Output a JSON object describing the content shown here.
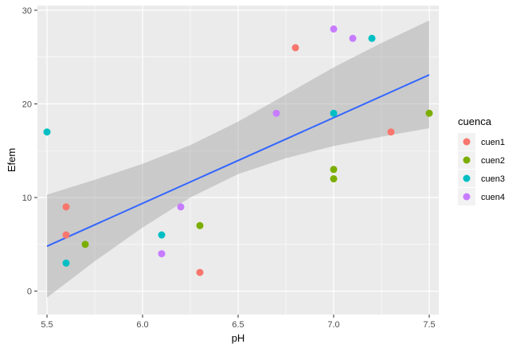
{
  "chart_data": {
    "type": "scatter",
    "xlabel": "pH",
    "ylabel": "Efem",
    "xlim": [
      5.45,
      7.55
    ],
    "ylim": [
      -2.5,
      30.5
    ],
    "x_ticks": [
      5.5,
      6.0,
      6.5,
      7.0,
      7.5
    ],
    "x_tick_labels": [
      "5.5",
      "6.0",
      "6.5",
      "7.0",
      "7.5"
    ],
    "y_ticks": [
      0,
      10,
      20,
      30
    ],
    "y_tick_labels": [
      "0",
      "10",
      "20",
      "30"
    ],
    "grid": true,
    "legend": {
      "title": "cuenca",
      "placement": "right"
    },
    "series": [
      {
        "name": "cuen1",
        "color": "#F8766D",
        "points": [
          [
            5.6,
            9
          ],
          [
            5.6,
            6
          ],
          [
            6.3,
            2
          ],
          [
            6.8,
            26
          ],
          [
            7.3,
            17
          ]
        ]
      },
      {
        "name": "cuen2",
        "color": "#7CAE00",
        "points": [
          [
            5.7,
            5
          ],
          [
            6.3,
            7
          ],
          [
            7.0,
            13
          ],
          [
            7.0,
            12
          ],
          [
            7.5,
            19
          ]
        ]
      },
      {
        "name": "cuen3",
        "color": "#00BFC4",
        "points": [
          [
            5.5,
            17
          ],
          [
            5.6,
            3
          ],
          [
            6.1,
            6
          ],
          [
            7.0,
            19
          ],
          [
            7.2,
            27
          ]
        ]
      },
      {
        "name": "cuen4",
        "color": "#C77CFF",
        "points": [
          [
            6.1,
            4
          ],
          [
            6.2,
            9
          ],
          [
            6.7,
            19
          ],
          [
            7.0,
            28
          ],
          [
            7.1,
            27
          ]
        ]
      }
    ],
    "trend_line": {
      "color": "#3366FF",
      "x": [
        5.5,
        7.5
      ],
      "y": [
        4.8,
        23.1
      ]
    },
    "confidence_band": {
      "color": "#999999",
      "x": [
        5.5,
        5.75,
        6.0,
        6.25,
        6.5,
        6.75,
        7.0,
        7.25,
        7.5
      ],
      "lower": [
        -0.7,
        3.2,
        6.8,
        10.0,
        12.5,
        14.2,
        15.5,
        16.5,
        17.4
      ],
      "upper": [
        10.3,
        11.9,
        13.6,
        15.6,
        18.1,
        21.0,
        23.9,
        26.5,
        28.9
      ]
    },
    "panel_background": "#EBEBEB",
    "grid_color": "#FFFFFF"
  }
}
